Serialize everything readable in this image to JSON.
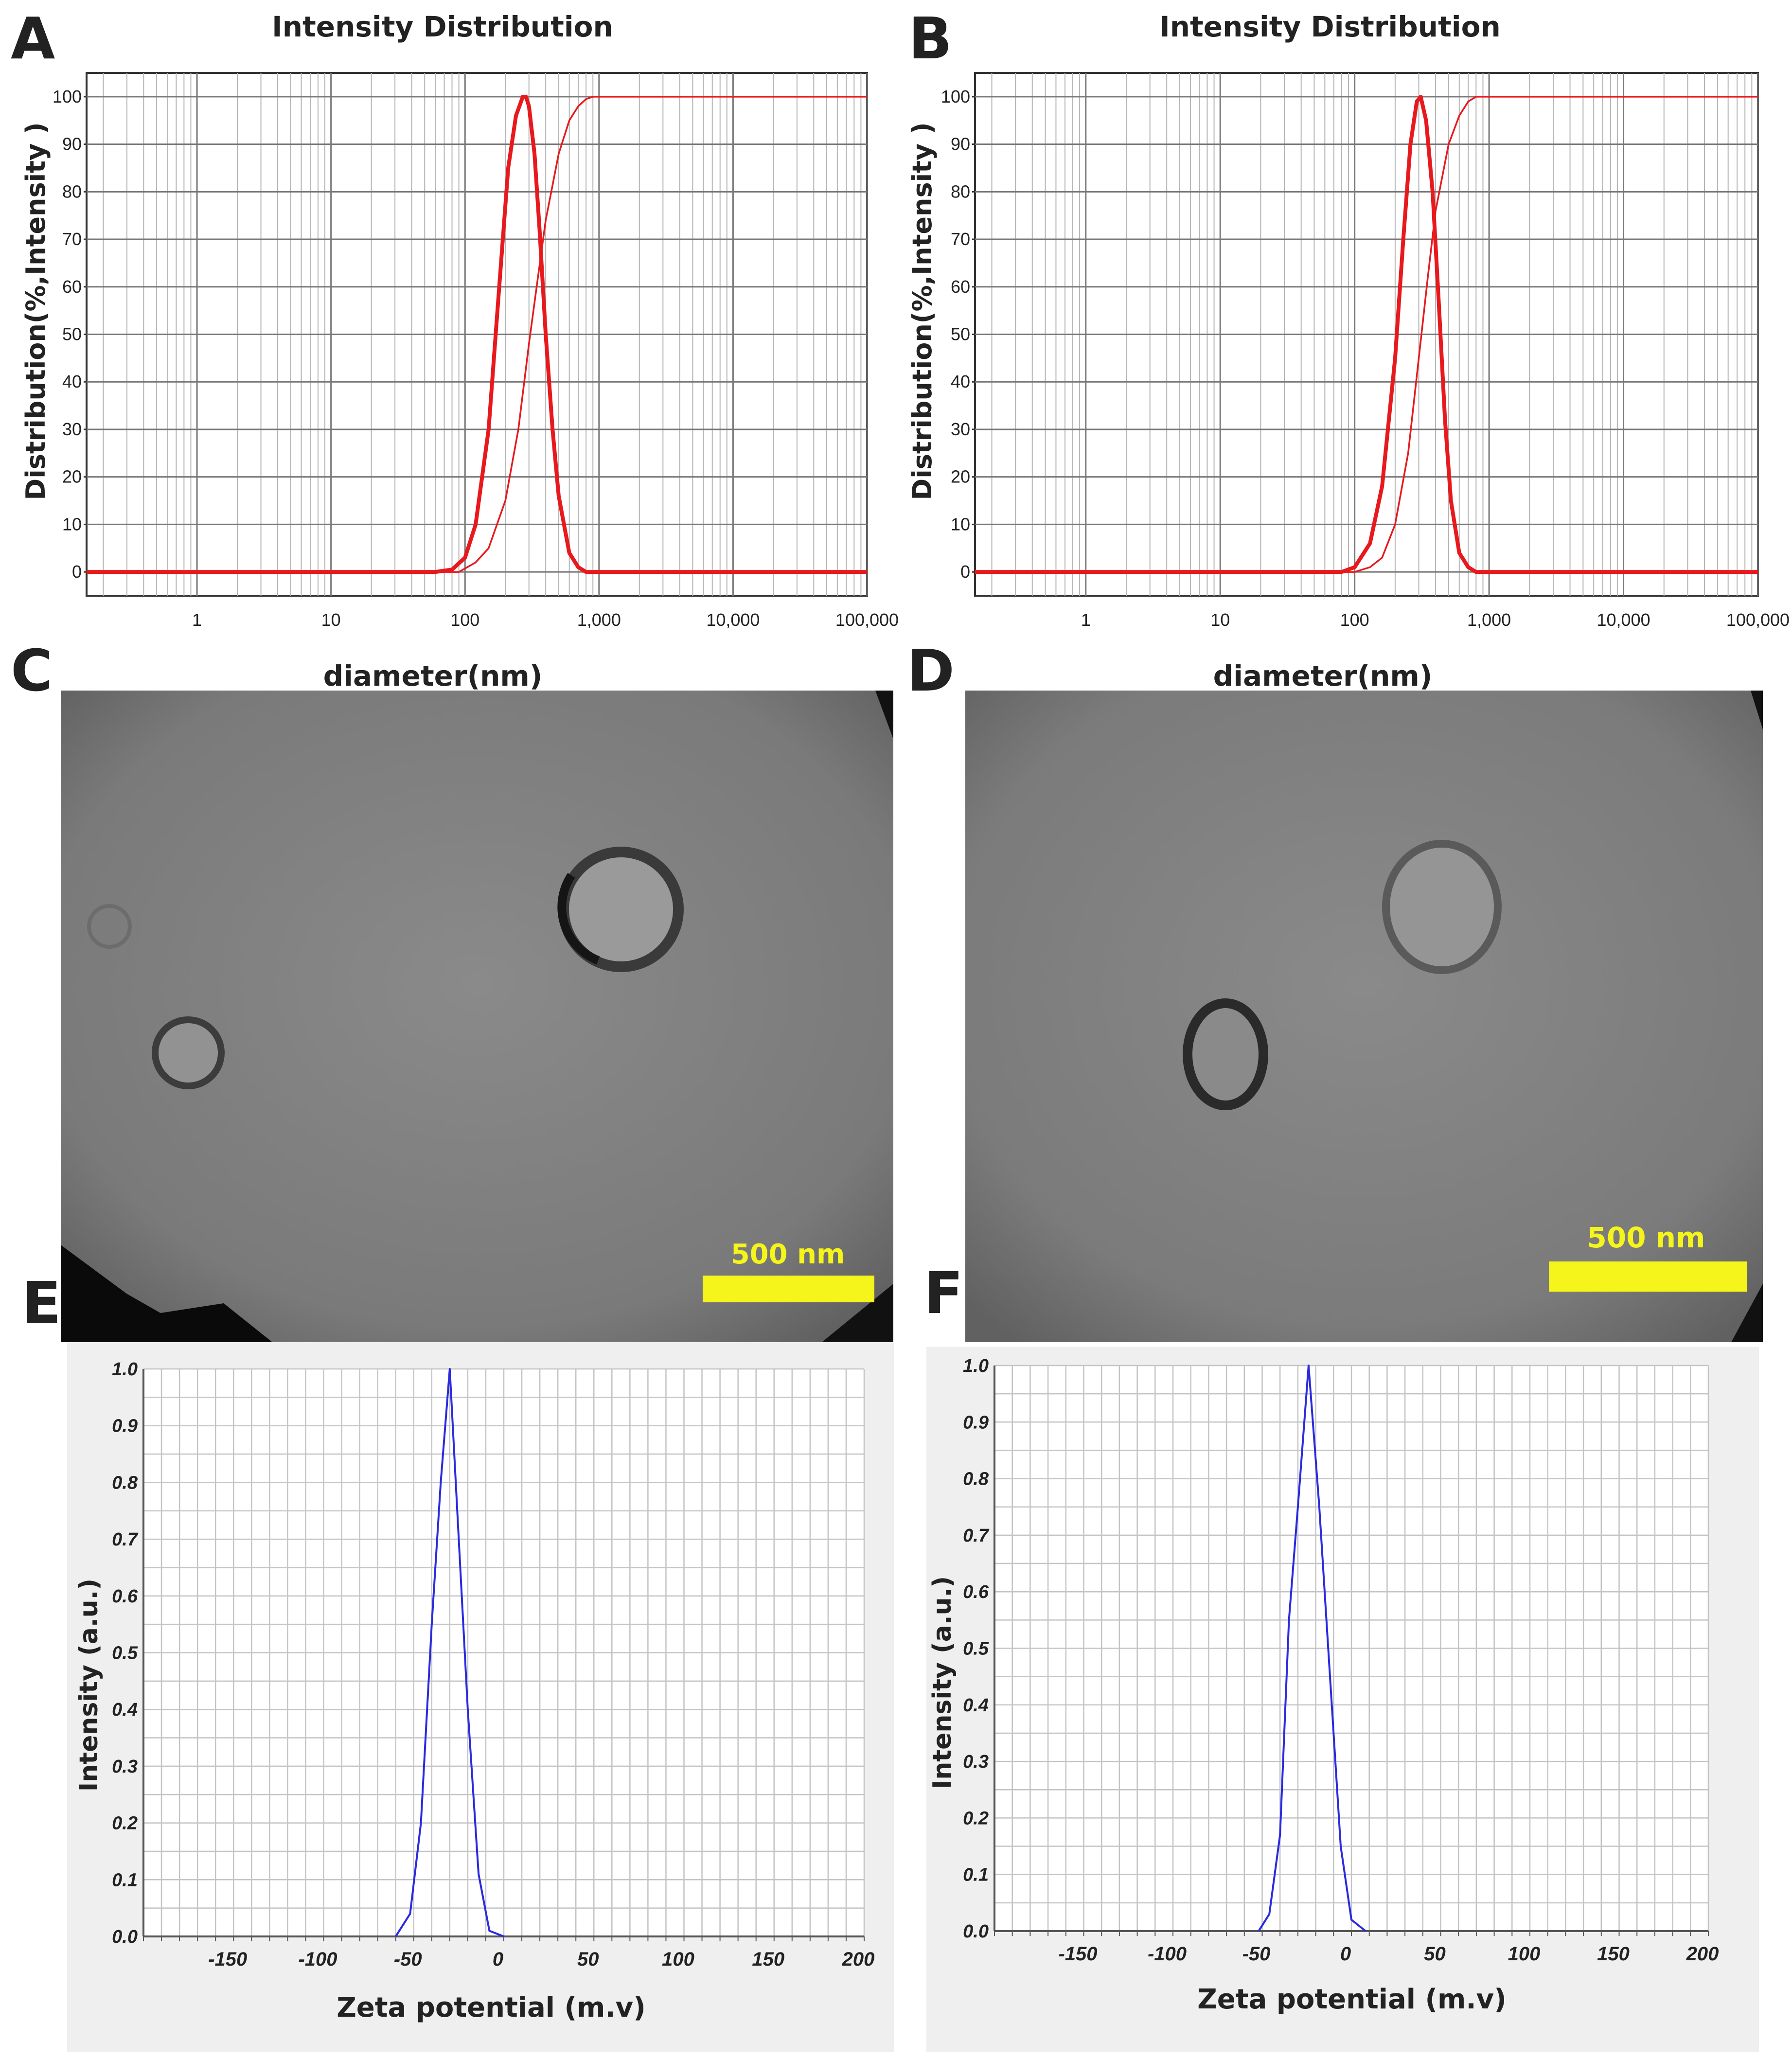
{
  "panels": {
    "A": {
      "letter": "A"
    },
    "B": {
      "letter": "B"
    },
    "C": {
      "letter": "C",
      "scale_bar": "500 nm"
    },
    "D": {
      "letter": "D",
      "scale_bar": "500 nm"
    },
    "E": {
      "letter": "E"
    },
    "F": {
      "letter": "F"
    }
  },
  "colors": {
    "dls_curve": "#e8191c",
    "zeta_curve": "#2a2ae0",
    "scale_bar": "#f5f51c",
    "grid": "#8c8c8c",
    "tem_background": "#7d7d7d"
  },
  "chart_data": [
    {
      "id": "A",
      "type": "line",
      "title": "Intensity Distribution",
      "xlabel": "diameter(nm)",
      "ylabel": "Distribution(%,Intensity )",
      "x_scale": "log",
      "xlim": [
        0.15,
        100000
      ],
      "ylim": [
        -5,
        105
      ],
      "x_ticks": [
        1,
        10,
        100,
        1000,
        10000,
        100000
      ],
      "x_tick_labels": [
        "1",
        "10",
        "100",
        "1,000",
        "10,000",
        "100,000"
      ],
      "y_ticks": [
        0,
        10,
        20,
        30,
        40,
        50,
        60,
        70,
        80,
        90,
        100
      ],
      "y_tick_labels": [
        "0",
        "10",
        "20",
        "30",
        "40",
        "50",
        "60",
        "70",
        "80",
        "90",
        "100"
      ],
      "grid": true,
      "series": [
        {
          "kind": "distribution",
          "x": [
            0.15,
            60,
            80,
            100,
            120,
            150,
            180,
            210,
            240,
            270,
            285,
            300,
            330,
            360,
            400,
            450,
            500,
            600,
            700,
            800,
            1000,
            100000
          ],
          "y": [
            0,
            0,
            0.5,
            3,
            10,
            30,
            60,
            85,
            96,
            100,
            100,
            98,
            88,
            72,
            50,
            30,
            16,
            4,
            1,
            0,
            0,
            0
          ]
        },
        {
          "kind": "cumulative",
          "x": [
            0.15,
            90,
            120,
            150,
            200,
            250,
            300,
            350,
            400,
            500,
            600,
            700,
            800,
            900,
            1000,
            100000
          ],
          "y": [
            0,
            0,
            2,
            5,
            15,
            30,
            48,
            62,
            74,
            88,
            95,
            98,
            99.5,
            100,
            100,
            100
          ]
        }
      ]
    },
    {
      "id": "B",
      "type": "line",
      "title": "Intensity Distribution",
      "xlabel": "diameter(nm)",
      "ylabel": "Distribution(%,Intensity )",
      "x_scale": "log",
      "xlim": [
        0.15,
        100000
      ],
      "ylim": [
        -5,
        105
      ],
      "x_ticks": [
        1,
        10,
        100,
        1000,
        10000,
        100000
      ],
      "x_tick_labels": [
        "1",
        "10",
        "100",
        "1,000",
        "10,000",
        "100,000"
      ],
      "y_ticks": [
        0,
        10,
        20,
        30,
        40,
        50,
        60,
        70,
        80,
        90,
        100
      ],
      "y_tick_labels": [
        "0",
        "10",
        "20",
        "30",
        "40",
        "50",
        "60",
        "70",
        "80",
        "90",
        "100"
      ],
      "grid": true,
      "series": [
        {
          "kind": "distribution",
          "x": [
            0.15,
            80,
            100,
            130,
            160,
            200,
            230,
            260,
            290,
            310,
            340,
            380,
            420,
            470,
            520,
            600,
            700,
            800,
            1000,
            100000
          ],
          "y": [
            0,
            0,
            1,
            6,
            18,
            45,
            70,
            90,
            99,
            100,
            95,
            80,
            58,
            32,
            15,
            4,
            1,
            0,
            0,
            0
          ]
        },
        {
          "kind": "cumulative",
          "x": [
            0.15,
            100,
            130,
            160,
            200,
            250,
            300,
            350,
            400,
            500,
            600,
            700,
            800,
            900,
            1000,
            100000
          ],
          "y": [
            0,
            0,
            1,
            3,
            10,
            25,
            45,
            62,
            76,
            90,
            96,
            99,
            100,
            100,
            100,
            100
          ]
        }
      ]
    },
    {
      "id": "E",
      "type": "line",
      "title": "",
      "xlabel": "Zeta potential (m.v)",
      "ylabel": "Intensity (a.u.)",
      "xlim": [
        -200,
        200
      ],
      "ylim": [
        0,
        1
      ],
      "x_ticks": [
        -150,
        -100,
        -50,
        0,
        50,
        100,
        150,
        200
      ],
      "x_tick_labels": [
        "-150",
        "-100",
        "-50",
        "0",
        "50",
        "100",
        "150",
        "200"
      ],
      "y_ticks": [
        0,
        0.1,
        0.2,
        0.3,
        0.4,
        0.5,
        0.6,
        0.7,
        0.8,
        0.9,
        1.0
      ],
      "y_tick_labels": [
        "0.0",
        "0.1",
        "0.2",
        "0.3",
        "0.4",
        "0.5",
        "0.6",
        "0.7",
        "0.8",
        "0.9",
        "1.0"
      ],
      "grid": true,
      "series": [
        {
          "x": [
            -60,
            -52,
            -46,
            -40,
            -35,
            -30,
            -25,
            -20,
            -14,
            -8,
            0
          ],
          "y": [
            0,
            0.04,
            0.2,
            0.55,
            0.8,
            1.0,
            0.7,
            0.4,
            0.11,
            0.01,
            0
          ]
        }
      ]
    },
    {
      "id": "F",
      "type": "line",
      "title": "",
      "xlabel": "Zeta potential (m.v)",
      "ylabel": "Intensity (a.u.)",
      "xlim": [
        -200,
        200
      ],
      "ylim": [
        0,
        1
      ],
      "x_ticks": [
        -150,
        -100,
        -50,
        0,
        50,
        100,
        150,
        200
      ],
      "x_tick_labels": [
        "-150",
        "-100",
        "-50",
        "0",
        "50",
        "100",
        "150",
        "200"
      ],
      "y_ticks": [
        0,
        0.1,
        0.2,
        0.3,
        0.4,
        0.5,
        0.6,
        0.7,
        0.8,
        0.9,
        1.0
      ],
      "y_tick_labels": [
        "0.0",
        "0.1",
        "0.2",
        "0.3",
        "0.4",
        "0.5",
        "0.6",
        "0.7",
        "0.8",
        "0.9",
        "1.0"
      ],
      "grid": true,
      "series": [
        {
          "x": [
            -52,
            -46,
            -40,
            -35,
            -30,
            -24,
            -18,
            -12,
            -6,
            0,
            8
          ],
          "y": [
            0,
            0.03,
            0.17,
            0.55,
            0.75,
            1.0,
            0.75,
            0.45,
            0.15,
            0.02,
            0
          ]
        }
      ]
    }
  ]
}
